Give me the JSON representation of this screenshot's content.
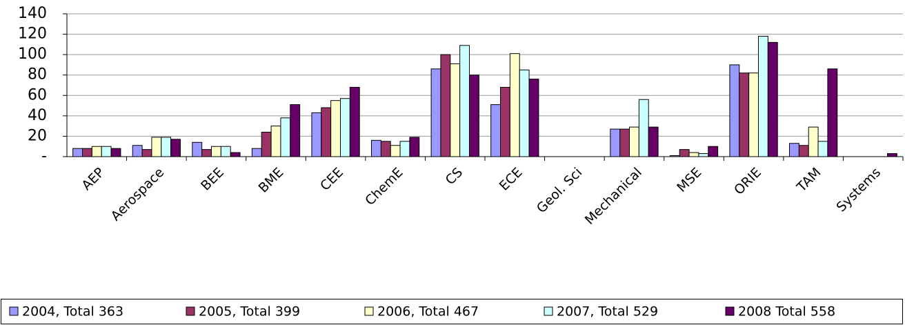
{
  "chart_data": {
    "type": "bar",
    "categories": [
      "AEP",
      "Aerospace",
      "BEE",
      "BME",
      "CEE",
      "ChemE",
      "CS",
      "ECE",
      "Geol. Sci",
      "Mechanical",
      "MSE",
      "ORIE",
      "TAM",
      "Systems"
    ],
    "series": [
      {
        "name": "2004, Total 363",
        "color": "#9999ff",
        "values": [
          8,
          11,
          14,
          8,
          43,
          16,
          86,
          51,
          0,
          27,
          1,
          90,
          13,
          0
        ]
      },
      {
        "name": "2005, Total 399",
        "color": "#993366",
        "values": [
          8,
          7,
          7,
          24,
          48,
          15,
          100,
          68,
          0,
          27,
          7,
          82,
          11,
          0
        ]
      },
      {
        "name": "2006, Total 467",
        "color": "#ffffcc",
        "values": [
          10,
          19,
          10,
          30,
          55,
          11,
          91,
          101,
          0,
          29,
          4,
          82,
          29,
          0
        ]
      },
      {
        "name": "2007, Total 529",
        "color": "#ccffff",
        "values": [
          10,
          19,
          10,
          38,
          57,
          15,
          109,
          85,
          0,
          56,
          3,
          118,
          15,
          0
        ]
      },
      {
        "name": "2008 Total 558",
        "color": "#660066",
        "values": [
          8,
          17,
          4,
          51,
          68,
          19,
          80,
          76,
          0,
          29,
          10,
          112,
          86,
          3
        ]
      }
    ],
    "ylim": [
      0,
      140
    ],
    "yticks": [
      {
        "value": 0,
        "label": "-"
      },
      20,
      40,
      60,
      80,
      100,
      120,
      140
    ],
    "grid": true,
    "legend": "bottom"
  }
}
